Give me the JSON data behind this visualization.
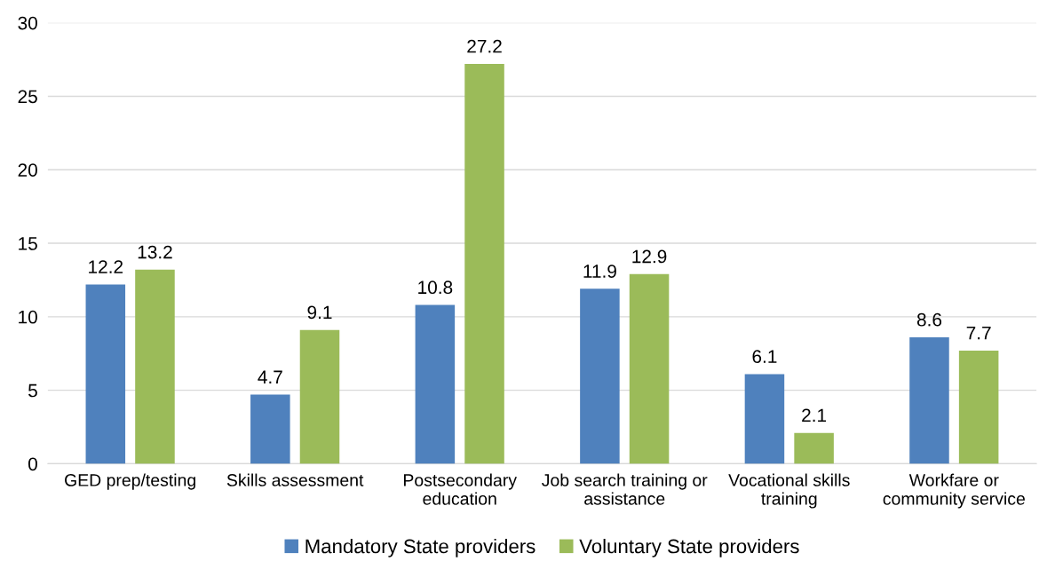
{
  "chart_data": {
    "type": "bar",
    "categories": [
      "GED prep/testing",
      "Skills assessment",
      "Postsecondary\neducation",
      "Job search training or\nassistance",
      "Vocational skills\ntraining",
      "Workfare or\ncommunity service"
    ],
    "series": [
      {
        "name": "Mandatory State providers",
        "color": "#4f81bd",
        "values": [
          12.2,
          4.7,
          10.8,
          11.9,
          6.1,
          8.6
        ]
      },
      {
        "name": "Voluntary State providers",
        "color": "#9bbb59",
        "values": [
          13.2,
          9.1,
          27.2,
          12.9,
          2.1,
          7.7
        ]
      }
    ],
    "ylim": [
      0,
      30
    ],
    "yticks": [
      0,
      5,
      10,
      15,
      20,
      25,
      30
    ],
    "grid": "y",
    "legend": "bottom",
    "data_labels": true
  }
}
